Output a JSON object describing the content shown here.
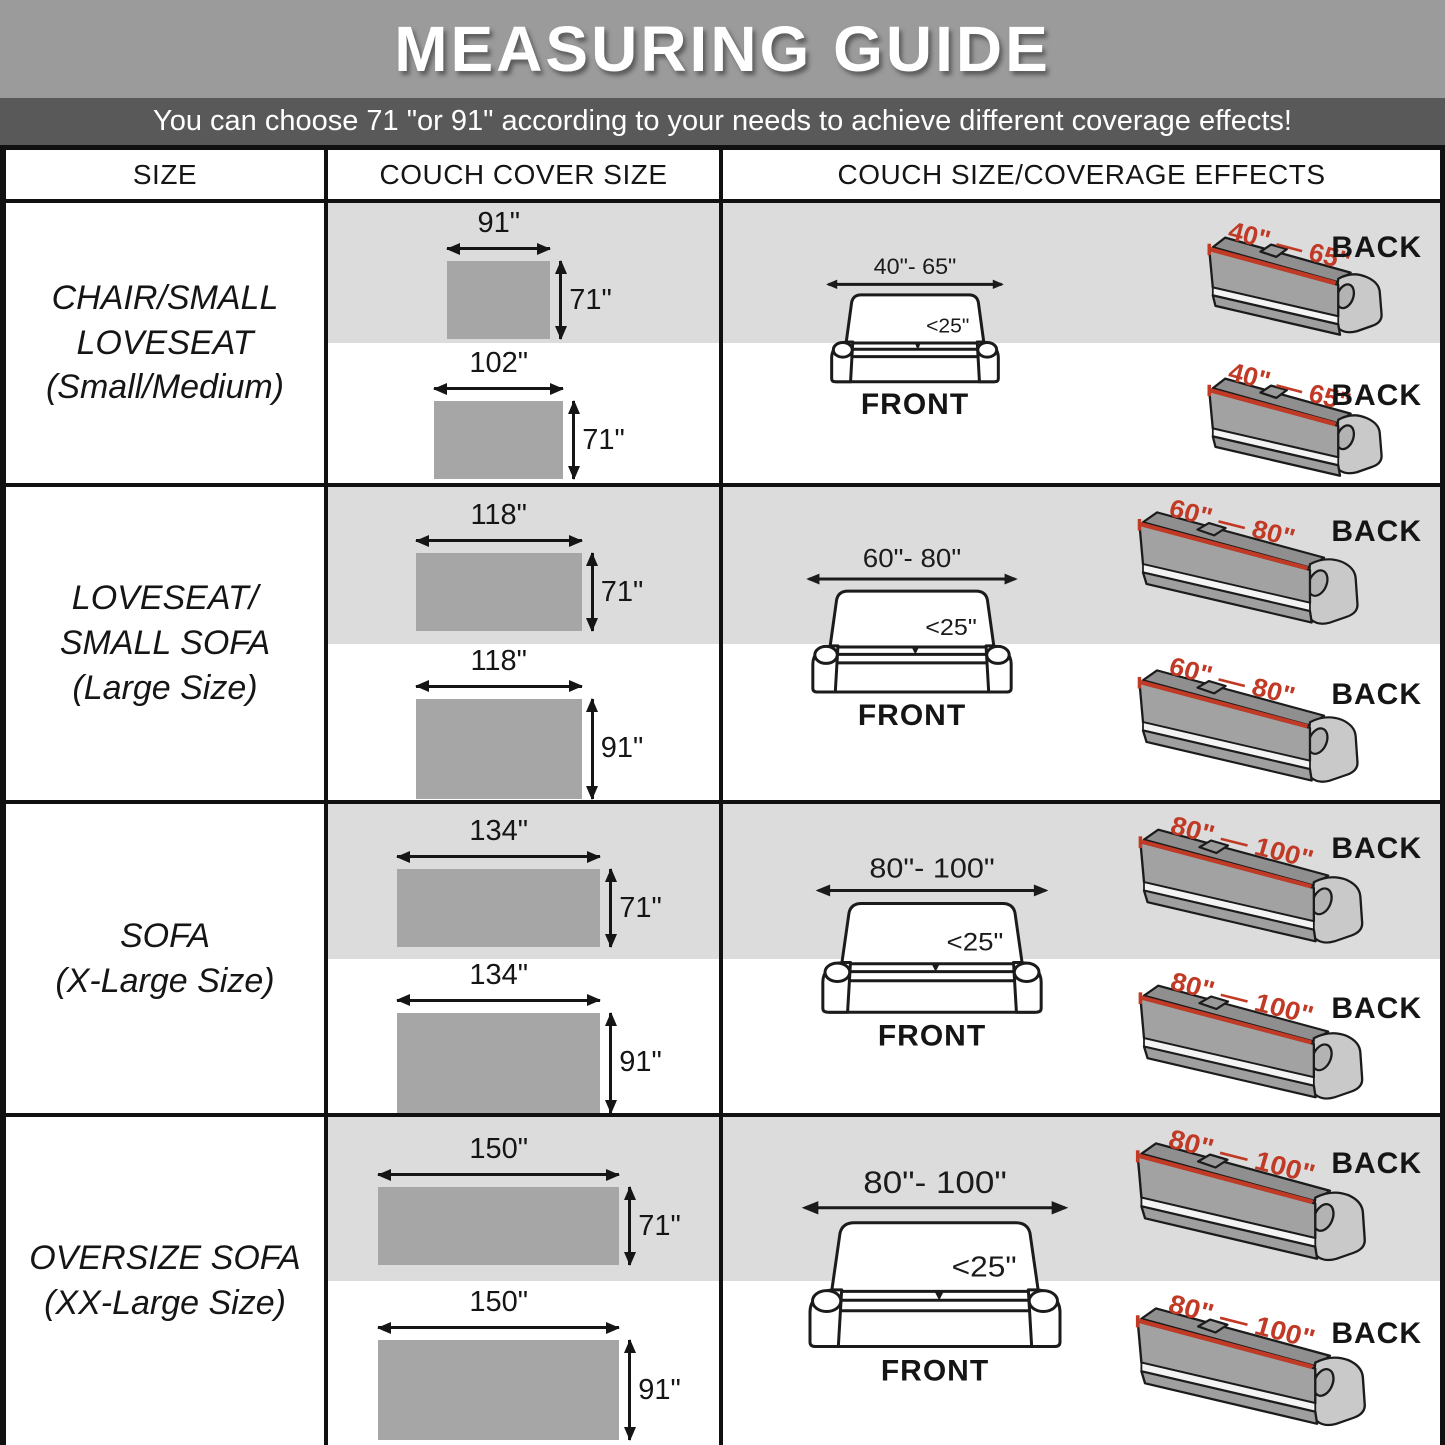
{
  "header": {
    "title": "MEASURING GUIDE",
    "subtitle": "You can choose 71 \"or 91\" according to your needs to achieve different coverage effects!"
  },
  "colors": {
    "accent_red": "#c03a26",
    "band_gray": "#dcdcdc",
    "cover_rect_gray": "#a6a6a6",
    "title_band_gray": "#9b9b9b",
    "subtitle_band_gray": "#595959"
  },
  "table": {
    "columns": [
      "SIZE",
      "COUCH COVER SIZE",
      "COUCH SIZE/COVERAGE EFFECTS"
    ],
    "rows": [
      {
        "size_lines": [
          "CHAIR/SMALL",
          "LOVESEAT",
          "(Small/Medium)"
        ],
        "covers": [
          {
            "width_in": 91,
            "height_in": 71,
            "width_label": "91\"",
            "height_label": "71\""
          },
          {
            "width_in": 102,
            "height_in": 71,
            "width_label": "102\"",
            "height_label": "71\""
          }
        ],
        "front": {
          "width_label": "40\"- 65\"",
          "depth_label": "<25\"",
          "caption": "FRONT"
        },
        "back": {
          "measure_label": "40\" — 65\"",
          "caption": "BACK"
        }
      },
      {
        "size_lines": [
          "LOVESEAT/",
          "SMALL SOFA",
          "(Large Size)"
        ],
        "covers": [
          {
            "width_in": 118,
            "height_in": 71,
            "width_label": "118\"",
            "height_label": "71\""
          },
          {
            "width_in": 118,
            "height_in": 91,
            "width_label": "118\"",
            "height_label": "91\""
          }
        ],
        "front": {
          "width_label": "60\"- 80\"",
          "depth_label": "<25\"",
          "caption": "FRONT"
        },
        "back": {
          "measure_label": "60\" — 80\"",
          "caption": "BACK"
        }
      },
      {
        "size_lines": [
          "SOFA",
          "(X-Large Size)"
        ],
        "covers": [
          {
            "width_in": 134,
            "height_in": 71,
            "width_label": "134\"",
            "height_label": "71\""
          },
          {
            "width_in": 134,
            "height_in": 91,
            "width_label": "134\"",
            "height_label": "91\""
          }
        ],
        "front": {
          "width_label": "80\"- 100\"",
          "depth_label": "<25\"",
          "caption": "FRONT"
        },
        "back": {
          "measure_label": "80\" — 100\"",
          "caption": "BACK"
        }
      },
      {
        "size_lines": [
          "OVERSIZE SOFA",
          "(XX-Large  Size)"
        ],
        "covers": [
          {
            "width_in": 150,
            "height_in": 71,
            "width_label": "150\"",
            "height_label": "71\""
          },
          {
            "width_in": 150,
            "height_in": 91,
            "width_label": "150\"",
            "height_label": "91\""
          }
        ],
        "front": {
          "width_label": "80\"- 100\"",
          "depth_label": "<25\"",
          "caption": "FRONT"
        },
        "back": {
          "measure_label": "80\" — 100\"",
          "caption": "BACK"
        }
      }
    ]
  }
}
